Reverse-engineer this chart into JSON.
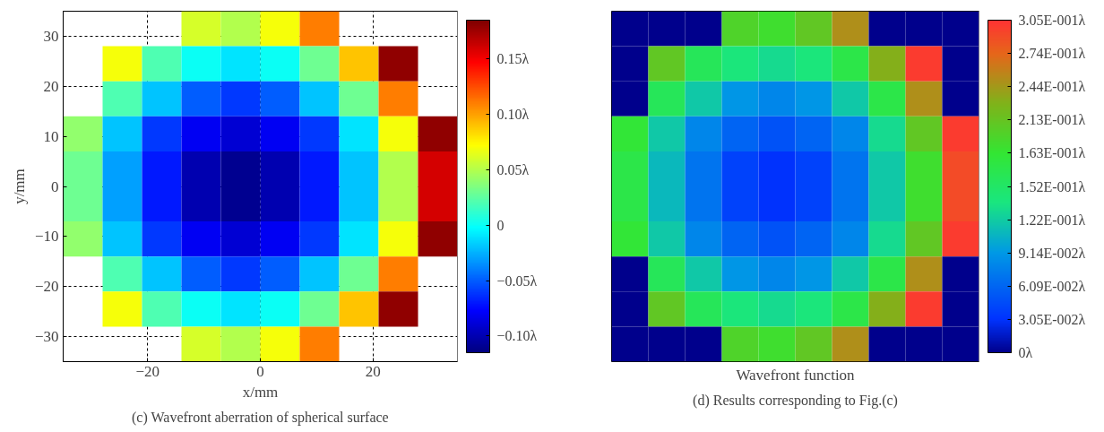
{
  "chart_data": [
    {
      "type": "heatmap",
      "xlabel": "x/mm",
      "ylabel": "y/mm",
      "annotations": [
        "(c) Wavefront aberration of spherical surface"
      ],
      "x": [
        -31.5,
        -24.5,
        -17.5,
        -10.5,
        -3.5,
        3.5,
        10.5,
        17.5,
        24.5,
        31.5
      ],
      "y": [
        31.5,
        24.5,
        17.5,
        10.5,
        3.5,
        -3.5,
        -10.5,
        -17.5,
        -24.5,
        -31.5
      ],
      "xlim": [
        -35,
        35
      ],
      "ylim": [
        -35,
        35
      ],
      "xticks": [
        {
          "value": -20,
          "label": "−20"
        },
        0,
        20
      ],
      "yticks": [
        {
          "value": -30,
          "label": "−30"
        },
        {
          "value": -20,
          "label": "−20"
        },
        {
          "value": -10,
          "label": "−10"
        },
        0,
        10,
        20,
        30
      ],
      "grid": true,
      "clim": [
        -0.115,
        0.185
      ],
      "cticks": [
        {
          "value": -0.1,
          "label": "−0.10λ"
        },
        {
          "value": -0.05,
          "label": "−0.05λ"
        },
        0,
        {
          "value": 0.05,
          "label": "0.05λ"
        },
        {
          "value": 0.1,
          "label": "0.10λ"
        },
        {
          "value": 0.15,
          "label": "0.15λ"
        }
      ],
      "cells": [
        [
          null,
          null,
          null,
          0.06,
          0.05,
          0.07,
          0.11,
          null,
          null,
          null
        ],
        [
          null,
          0.07,
          0.02,
          0.0,
          -0.01,
          0.0,
          0.03,
          0.09,
          0.18,
          null
        ],
        [
          null,
          0.02,
          -0.02,
          -0.05,
          -0.06,
          -0.05,
          -0.02,
          0.03,
          0.11,
          null
        ],
        [
          0.04,
          -0.02,
          -0.06,
          -0.08,
          -0.09,
          -0.08,
          -0.06,
          -0.01,
          0.07,
          0.18
        ],
        [
          0.03,
          -0.03,
          -0.07,
          -0.1,
          -0.11,
          -0.1,
          -0.07,
          -0.02,
          0.05,
          0.16
        ],
        [
          0.03,
          -0.03,
          -0.07,
          -0.1,
          -0.11,
          -0.1,
          -0.07,
          -0.02,
          0.05,
          0.16
        ],
        [
          0.04,
          -0.02,
          -0.06,
          -0.08,
          -0.09,
          -0.08,
          -0.06,
          -0.01,
          0.07,
          0.18
        ],
        [
          null,
          0.02,
          -0.02,
          -0.05,
          -0.06,
          -0.05,
          -0.02,
          0.03,
          0.11,
          null
        ],
        [
          null,
          0.07,
          0.02,
          0.0,
          -0.01,
          0.0,
          0.03,
          0.09,
          0.18,
          null
        ],
        [
          null,
          null,
          null,
          0.06,
          0.05,
          0.07,
          0.11,
          null,
          null,
          null
        ]
      ]
    },
    {
      "type": "heatmap",
      "xlabel": "Wavefront function",
      "annotations": [
        "(d) Results corresponding to Fig.(c)"
      ],
      "categories": [
        null,
        null,
        null,
        null,
        null,
        null,
        null,
        null,
        null,
        null
      ],
      "y_categories": [
        null,
        null,
        null,
        null,
        null,
        null,
        null,
        null,
        null,
        null
      ],
      "tick_labels": false,
      "clim": [
        0,
        0.305
      ],
      "cticks": [
        {
          "value": 0,
          "label": "0λ"
        },
        {
          "value": 0.0305,
          "label": "3.05E-002λ"
        },
        {
          "value": 0.061,
          "label": "6.09E-002λ"
        },
        {
          "value": 0.0915,
          "label": "9.14E-002λ"
        },
        {
          "value": 0.122,
          "label": "1.22E-001λ"
        },
        {
          "value": 0.1525,
          "label": "1.52E-001λ"
        },
        {
          "value": 0.183,
          "label": "1.63E-001λ"
        },
        {
          "value": 0.2135,
          "label": "2.13E-001λ"
        },
        {
          "value": 0.244,
          "label": "2.44E-001λ"
        },
        {
          "value": 0.2745,
          "label": "2.74E-001λ"
        },
        {
          "value": 0.305,
          "label": "3.05E-001λ"
        }
      ],
      "cells": [
        [
          0,
          0,
          0,
          0.2,
          0.19,
          0.21,
          0.25,
          0,
          0,
          0
        ],
        [
          0,
          0.21,
          0.16,
          0.14,
          0.13,
          0.14,
          0.17,
          0.23,
          0.3,
          0
        ],
        [
          0,
          0.16,
          0.12,
          0.09,
          0.08,
          0.09,
          0.12,
          0.17,
          0.25,
          0
        ],
        [
          0.18,
          0.12,
          0.08,
          0.06,
          0.05,
          0.06,
          0.08,
          0.13,
          0.21,
          0.3
        ],
        [
          0.17,
          0.11,
          0.07,
          0.04,
          0.03,
          0.04,
          0.07,
          0.12,
          0.19,
          0.29
        ],
        [
          0.17,
          0.11,
          0.07,
          0.04,
          0.03,
          0.04,
          0.07,
          0.12,
          0.19,
          0.29
        ],
        [
          0.18,
          0.12,
          0.08,
          0.06,
          0.05,
          0.06,
          0.08,
          0.13,
          0.21,
          0.3
        ],
        [
          0,
          0.16,
          0.12,
          0.09,
          0.08,
          0.09,
          0.12,
          0.17,
          0.25,
          0
        ],
        [
          0,
          0.21,
          0.16,
          0.14,
          0.13,
          0.14,
          0.17,
          0.23,
          0.3,
          0
        ],
        [
          0,
          0,
          0,
          0.2,
          0.19,
          0.21,
          0.25,
          0,
          0,
          0
        ]
      ]
    }
  ]
}
